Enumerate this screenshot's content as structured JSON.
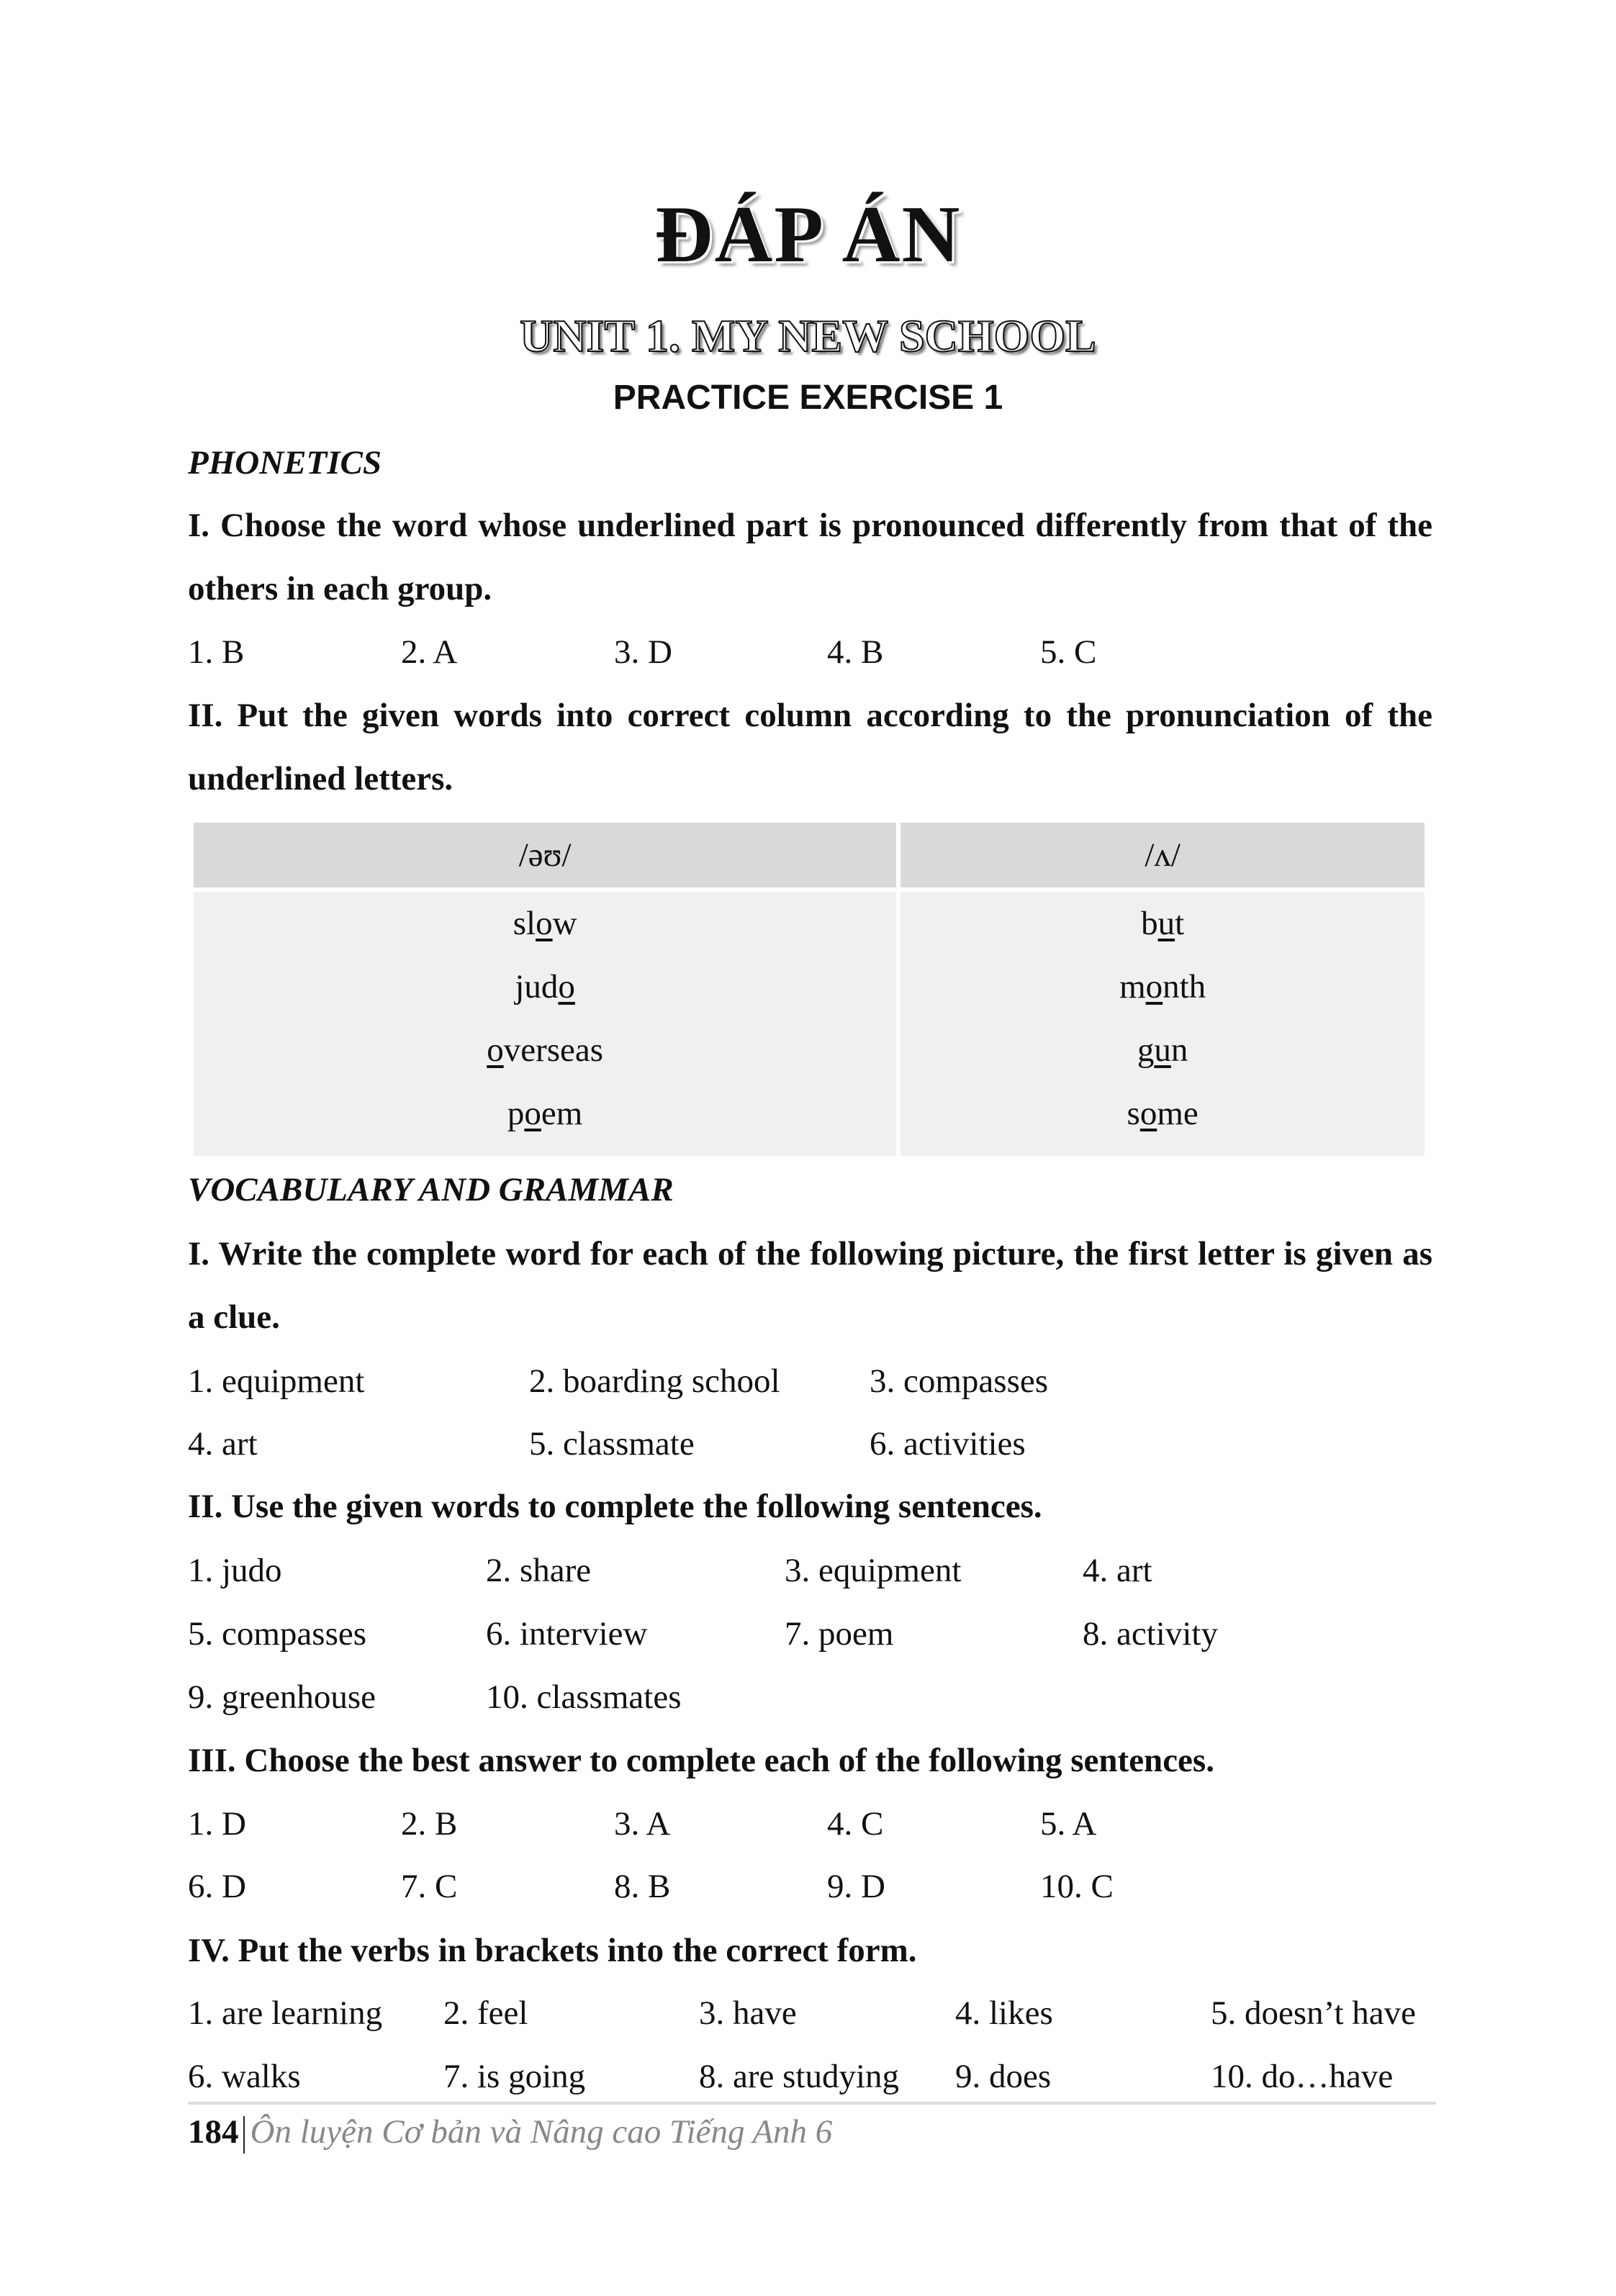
{
  "title": "ĐÁP ÁN",
  "unit_title": "UNIT 1. MY NEW SCHOOL",
  "exercise_title": "PRACTICE EXERCISE 1",
  "phonetics": {
    "heading": "PHONETICS",
    "task1": {
      "instruction": "I. Choose the word whose underlined part is pronounced differently from that of the others in each group.",
      "answers": [
        [
          "1. B",
          "2. A",
          "3. D",
          "4. B",
          "5. C"
        ]
      ]
    },
    "task2": {
      "instruction": "II. Put the given words into correct column according to the pronunciation of the underlined letters.",
      "table": {
        "headers": [
          "/əʊ/",
          "/ʌ/"
        ],
        "columns": [
          [
            [
              "sl",
              "o",
              "w"
            ],
            [
              "jud",
              "o",
              ""
            ],
            [
              "",
              "o",
              "verseas"
            ],
            [
              "p",
              "o",
              "em"
            ]
          ],
          [
            [
              "b",
              "u",
              "t"
            ],
            [
              "m",
              "o",
              "nth"
            ],
            [
              "g",
              "u",
              "n"
            ],
            [
              "s",
              "o",
              "me"
            ]
          ]
        ]
      }
    }
  },
  "vocab": {
    "heading": "VOCABULARY AND GRAMMAR",
    "task1": {
      "instruction": "I. Write the complete word for each of the following picture, the first letter is given as a clue.",
      "answers": [
        [
          "1. equipment",
          "2. boarding school",
          "3. compasses"
        ],
        [
          "4. art",
          "5. classmate",
          "6. activities"
        ]
      ]
    },
    "task2": {
      "instruction": "II. Use the given words to complete the following sentences.",
      "answers": [
        [
          "1. judo",
          "2. share",
          "3. equipment",
          "4. art"
        ],
        [
          "5. compasses",
          "6. interview",
          "7. poem",
          "8. activity"
        ],
        [
          "9. greenhouse",
          "10. classmates"
        ]
      ]
    },
    "task3": {
      "instruction": "III. Choose the best answer to complete each of the following sentences.",
      "answers": [
        [
          "1. D",
          "2. B",
          "3. A",
          "4. C",
          "5. A"
        ],
        [
          "6. D",
          "7. C",
          "8. B",
          "9. D",
          "10. C"
        ]
      ]
    },
    "task4": {
      "instruction": "IV. Put the verbs in brackets into the correct form.",
      "answers": [
        [
          "1. are learning",
          "2. feel",
          "3. have",
          "4. likes",
          "5. doesn’t have"
        ],
        [
          "6. walks",
          "7. is going",
          "8. are studying",
          "9. does",
          "10. do…have"
        ]
      ]
    }
  },
  "footer": {
    "page_number": "184",
    "separator": "|",
    "book_title": "Ôn luyện Cơ bản và Nâng cao Tiếng Anh 6"
  }
}
